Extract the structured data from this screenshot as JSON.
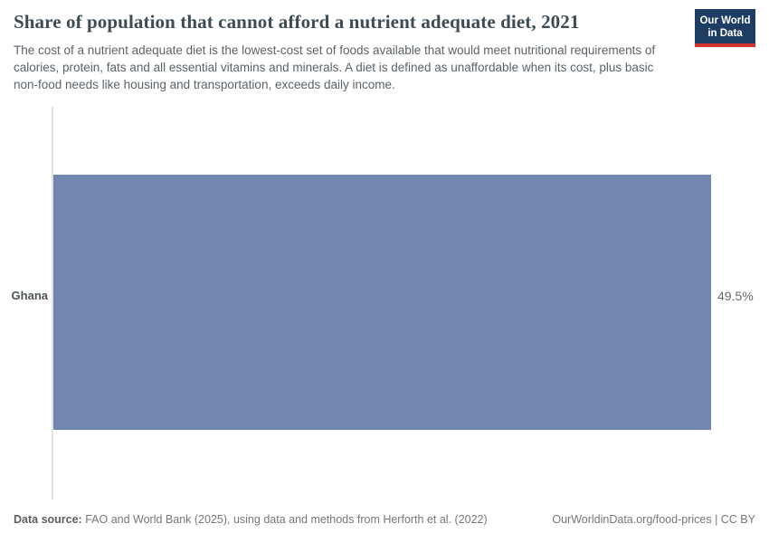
{
  "header": {
    "title": "Share of population that cannot afford a nutrient adequate diet, 2021",
    "subtitle": "The cost of a nutrient adequate diet is the lowest-cost set of foods available that would meet nutritional requirements of calories, protein, fats and all essential vitamins and minerals. A diet is defined as unaffordable when its cost, plus basic non-food needs like housing and transportation, exceeds daily income.",
    "logo": {
      "line1": "Our World",
      "line2": "in Data"
    }
  },
  "chart_data": {
    "type": "bar",
    "orientation": "horizontal",
    "title": "Share of population that cannot afford a nutrient adequate diet, 2021",
    "year": "2021",
    "categories": [
      "Ghana"
    ],
    "values": [
      49.5
    ],
    "value_labels": [
      "49.5%"
    ],
    "unit": "%",
    "xlabel": "",
    "ylabel": "",
    "xlim": [
      0,
      49.5
    ],
    "grid": false,
    "legend": false,
    "axis_ticks_shown": false,
    "bar_color": "#7187b0"
  },
  "colors": {
    "bar": "#7187b0",
    "logo_background": "#1d3d63",
    "logo_accent_red": "#d0342c",
    "title_text": "#3d4c54",
    "subtitle_text": "#5b6369",
    "axis_line": "#e2e2e2",
    "footer_text": "#777777"
  },
  "footer": {
    "datasource_label": "Data source:",
    "datasource_text": "FAO and World Bank (2025), using data and methods from Herforth et al. (2022)",
    "link_text": "OurWorldinData.org/food-prices | CC BY"
  }
}
